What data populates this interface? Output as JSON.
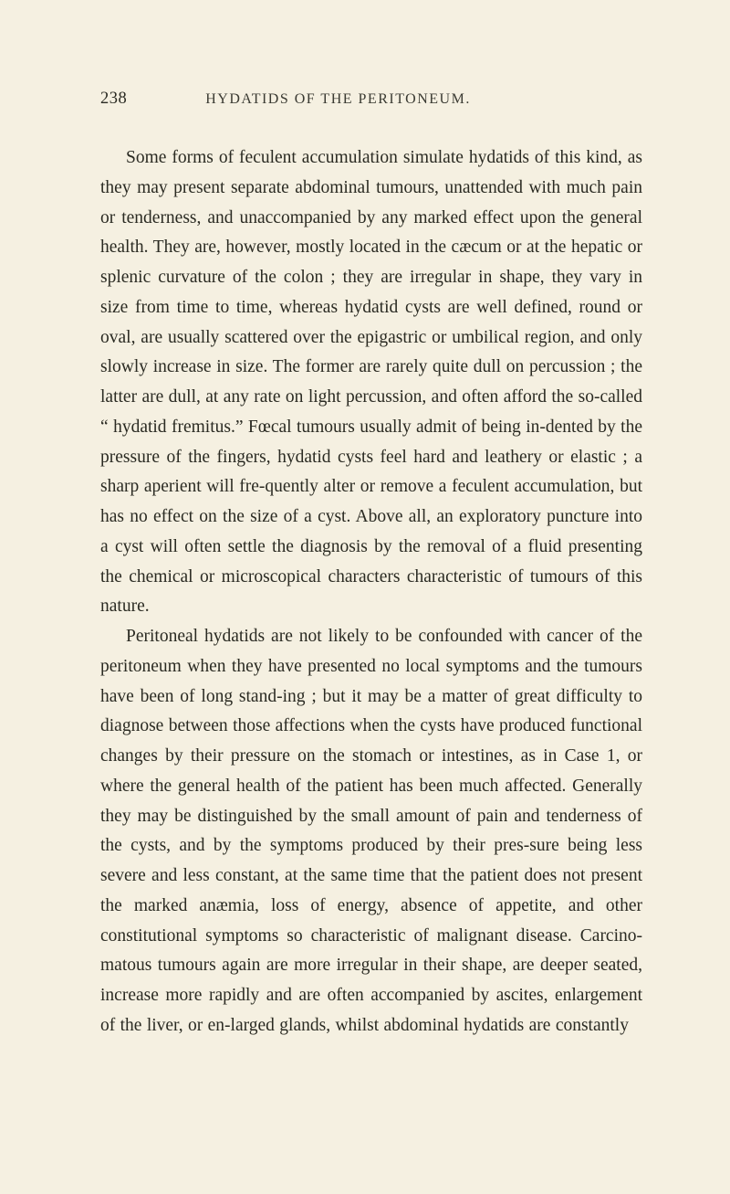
{
  "page": {
    "number": "238",
    "header_title": "HYDATIDS OF THE PERITONEUM.",
    "paragraphs": [
      "Some forms of feculent accumulation simulate hydatids of this kind, as they may present separate abdominal tumours, unattended with much pain or tenderness, and unaccompanied by any marked effect upon the general health. They are, however, mostly located in the cæcum or at the hepatic or splenic curvature of the colon ; they are irregular in shape, they vary in size from time to time, whereas hydatid cysts are well defined, round or oval, are usually scattered over the epigastric or umbilical region, and only slowly increase in size. The former are rarely quite dull on percussion ; the latter are dull, at any rate on light percussion, and often afford the so-called “ hydatid fremitus.” Fœcal tumours usually admit of being in-dented by the pressure of the fingers, hydatid cysts feel hard and leathery or elastic ; a sharp aperient will fre-quently alter or remove a feculent accumulation, but has no effect on the size of a cyst. Above all, an exploratory puncture into a cyst will often settle the diagnosis by the removal of a fluid presenting the chemical or microscopical characters characteristic of tumours of this nature.",
      "Peritoneal hydatids are not likely to be confounded with cancer of the peritoneum when they have presented no local symptoms and the tumours have been of long stand-ing ; but it may be a matter of great difficulty to diagnose between those affections when the cysts have produced functional changes by their pressure on the stomach or intestines, as in Case 1, or where the general health of the patient has been much affected. Generally they may be distinguished by the small amount of pain and tenderness of the cysts, and by the symptoms produced by their pres-sure being less severe and less constant, at the same time that the patient does not present the marked anæmia, loss of energy, absence of appetite, and other constitutional symptoms so characteristic of malignant disease. Carcino-matous tumours again are more irregular in their shape, are deeper seated, increase more rapidly and are often accompanied by ascites, enlargement of the liver, or en-larged glands, whilst abdominal hydatids are constantly"
    ]
  },
  "colors": {
    "page_background": "#f5f0e1",
    "text_color": "#2a2a22",
    "header_color": "#3a3a32"
  },
  "typography": {
    "body_fontsize": 19.5,
    "header_fontsize": 16,
    "pagenum_fontsize": 18.5,
    "line_height": 1.68,
    "text_indent": 28
  }
}
